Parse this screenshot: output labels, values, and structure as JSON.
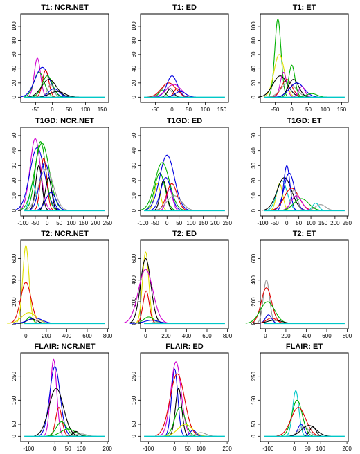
{
  "figure": {
    "palette": [
      "#000000",
      "#e00000",
      "#00b000",
      "#0000e0",
      "#00c8c8",
      "#d000d0",
      "#e0e000",
      "#999999"
    ],
    "baseline_color": "#00c8c8"
  },
  "chart_data": [
    {
      "type": "line",
      "title": "T1: NCR.NET",
      "xlim": [
        -95,
        170
      ],
      "ylim": [
        0,
        110
      ],
      "xticks": [
        -50,
        0,
        50,
        100,
        150
      ],
      "yticks": [
        0,
        20,
        40,
        60,
        80,
        100
      ],
      "peaks": [
        {
          "x": -45,
          "y": 55,
          "color": "#d000d0"
        },
        {
          "x": -40,
          "y": 35,
          "color": "#00b000"
        },
        {
          "x": -30,
          "y": 42,
          "color": "#0000e0"
        },
        {
          "x": -20,
          "y": 38,
          "color": "#e00000"
        },
        {
          "x": -15,
          "y": 30,
          "color": "#00b000"
        },
        {
          "x": -10,
          "y": 25,
          "color": "#000000"
        },
        {
          "x": -5,
          "y": 18,
          "color": "#999999"
        },
        {
          "x": 5,
          "y": 12,
          "color": "#0000e0"
        },
        {
          "x": 15,
          "y": 8,
          "color": "#000000"
        }
      ]
    },
    {
      "type": "line",
      "title": "T1: ED",
      "xlim": [
        -95,
        170
      ],
      "ylim": [
        0,
        110
      ],
      "xticks": [
        -50,
        0,
        50,
        100,
        150
      ],
      "yticks": [
        0,
        20,
        40,
        60,
        80,
        100
      ],
      "peaks": [
        {
          "x": -30,
          "y": 10,
          "color": "#00b000"
        },
        {
          "x": -20,
          "y": 15,
          "color": "#999999"
        },
        {
          "x": -10,
          "y": 20,
          "color": "#e00000"
        },
        {
          "x": -5,
          "y": 12,
          "color": "#000000"
        },
        {
          "x": 0,
          "y": 30,
          "color": "#0000e0"
        },
        {
          "x": 5,
          "y": 18,
          "color": "#d000d0"
        },
        {
          "x": 15,
          "y": 12,
          "color": "#e00000"
        },
        {
          "x": 25,
          "y": 8,
          "color": "#0000e0"
        }
      ]
    },
    {
      "type": "line",
      "title": "T1: ET",
      "xlim": [
        -95,
        170
      ],
      "ylim": [
        0,
        110
      ],
      "xticks": [
        -50,
        0,
        50,
        100,
        150
      ],
      "yticks": [
        0,
        20,
        40,
        60,
        80,
        100
      ],
      "peaks": [
        {
          "x": -42,
          "y": 110,
          "color": "#00b000"
        },
        {
          "x": -38,
          "y": 60,
          "color": "#e0e000"
        },
        {
          "x": -35,
          "y": 30,
          "color": "#000000"
        },
        {
          "x": -25,
          "y": 35,
          "color": "#d000d0"
        },
        {
          "x": -15,
          "y": 25,
          "color": "#e00000"
        },
        {
          "x": -10,
          "y": 20,
          "color": "#999999"
        },
        {
          "x": 0,
          "y": 45,
          "color": "#00b000"
        },
        {
          "x": 5,
          "y": 25,
          "color": "#000000"
        },
        {
          "x": 15,
          "y": 20,
          "color": "#0000e0"
        },
        {
          "x": 30,
          "y": 15,
          "color": "#d000d0"
        },
        {
          "x": 60,
          "y": 5,
          "color": "#00b000"
        }
      ]
    },
    {
      "type": "line",
      "title": "T1GD: NCR.NET",
      "xlim": [
        -110,
        255
      ],
      "ylim": [
        0,
        52
      ],
      "xticks": [
        -100,
        -50,
        0,
        50,
        100,
        150,
        200,
        250
      ],
      "yticks": [
        0,
        10,
        20,
        30,
        40,
        50
      ],
      "peaks": [
        {
          "x": -60,
          "y": 18,
          "color": "#00c8c8"
        },
        {
          "x": -50,
          "y": 48,
          "color": "#d000d0"
        },
        {
          "x": -42,
          "y": 42,
          "color": "#0000e0"
        },
        {
          "x": -35,
          "y": 30,
          "color": "#000000"
        },
        {
          "x": -28,
          "y": 46,
          "color": "#00b000"
        },
        {
          "x": -22,
          "y": 45,
          "color": "#00b000"
        },
        {
          "x": -15,
          "y": 35,
          "color": "#e00000"
        },
        {
          "x": -10,
          "y": 32,
          "color": "#0000e0"
        },
        {
          "x": -5,
          "y": 28,
          "color": "#999999"
        },
        {
          "x": 5,
          "y": 22,
          "color": "#000000"
        },
        {
          "x": 15,
          "y": 12,
          "color": "#0000e0"
        }
      ]
    },
    {
      "type": "line",
      "title": "T1GD: ED",
      "xlim": [
        -110,
        255
      ],
      "ylim": [
        0,
        52
      ],
      "xticks": [
        -100,
        -50,
        0,
        50,
        100,
        150,
        200,
        250
      ],
      "yticks": [
        0,
        10,
        20,
        30,
        40,
        50
      ],
      "peaks": [
        {
          "x": -40,
          "y": 18,
          "color": "#e0e000"
        },
        {
          "x": -30,
          "y": 25,
          "color": "#00b000"
        },
        {
          "x": -20,
          "y": 32,
          "color": "#00b000"
        },
        {
          "x": -15,
          "y": 20,
          "color": "#000000"
        },
        {
          "x": -5,
          "y": 22,
          "color": "#0000e0"
        },
        {
          "x": 0,
          "y": 37,
          "color": "#0000e0"
        },
        {
          "x": 10,
          "y": 14,
          "color": "#d000d0"
        },
        {
          "x": 20,
          "y": 18,
          "color": "#e00000"
        },
        {
          "x": 30,
          "y": 10,
          "color": "#999999"
        }
      ]
    },
    {
      "type": "line",
      "title": "T1GD: ET",
      "xlim": [
        -110,
        255
      ],
      "ylim": [
        0,
        52
      ],
      "xticks": [
        -100,
        -50,
        0,
        50,
        100,
        150,
        200,
        250
      ],
      "yticks": [
        0,
        10,
        20,
        30,
        40,
        50
      ],
      "peaks": [
        {
          "x": -30,
          "y": 18,
          "color": "#e0e000"
        },
        {
          "x": -20,
          "y": 20,
          "color": "#00c8c8"
        },
        {
          "x": -10,
          "y": 22,
          "color": "#000000"
        },
        {
          "x": 0,
          "y": 30,
          "color": "#0000e0"
        },
        {
          "x": 10,
          "y": 25,
          "color": "#0000e0"
        },
        {
          "x": 20,
          "y": 15,
          "color": "#e00000"
        },
        {
          "x": 30,
          "y": 14,
          "color": "#999999"
        },
        {
          "x": 40,
          "y": 10,
          "color": "#d000d0"
        },
        {
          "x": 60,
          "y": 8,
          "color": "#00b000"
        },
        {
          "x": 120,
          "y": 5,
          "color": "#00c8c8"
        },
        {
          "x": 140,
          "y": 4,
          "color": "#999999"
        }
      ]
    },
    {
      "type": "line",
      "title": "T2: NCR.NET",
      "xlim": [
        -50,
        810
      ],
      "ylim": [
        0,
        720
      ],
      "xticks": [
        0,
        200,
        400,
        600,
        800
      ],
      "yticks": [
        0,
        200,
        400,
        600
      ],
      "peaks": [
        {
          "x": 0,
          "y": 720,
          "color": "#e0e000"
        },
        {
          "x": 0,
          "y": 380,
          "color": "#e00000"
        },
        {
          "x": 30,
          "y": 100,
          "color": "#e0e000"
        },
        {
          "x": 40,
          "y": 60,
          "color": "#00b000"
        },
        {
          "x": 60,
          "y": 40,
          "color": "#000000"
        },
        {
          "x": 90,
          "y": 50,
          "color": "#0000e0"
        },
        {
          "x": 140,
          "y": 30,
          "color": "#999999"
        }
      ]
    },
    {
      "type": "line",
      "title": "T2: ED",
      "xlim": [
        -50,
        810
      ],
      "ylim": [
        0,
        720
      ],
      "xticks": [
        0,
        200,
        400,
        600,
        800
      ],
      "yticks": [
        0,
        200,
        400,
        600
      ],
      "peaks": [
        {
          "x": 0,
          "y": 660,
          "color": "#e0e000"
        },
        {
          "x": 0,
          "y": 600,
          "color": "#000000"
        },
        {
          "x": 0,
          "y": 500,
          "color": "#d000d0"
        },
        {
          "x": 5,
          "y": 300,
          "color": "#e00000"
        },
        {
          "x": 30,
          "y": 60,
          "color": "#00b000"
        },
        {
          "x": 60,
          "y": 30,
          "color": "#0000e0"
        },
        {
          "x": 100,
          "y": 15,
          "color": "#999999"
        }
      ]
    },
    {
      "type": "line",
      "title": "T2: ET",
      "xlim": [
        -50,
        810
      ],
      "ylim": [
        0,
        720
      ],
      "xticks": [
        0,
        200,
        400,
        600,
        800
      ],
      "yticks": [
        0,
        200,
        400,
        600
      ],
      "peaks": [
        {
          "x": 10,
          "y": 400,
          "color": "#999999"
        },
        {
          "x": 10,
          "y": 330,
          "color": "#e00000"
        },
        {
          "x": 20,
          "y": 200,
          "color": "#00b000"
        },
        {
          "x": 30,
          "y": 80,
          "color": "#0000e0"
        },
        {
          "x": 60,
          "y": 50,
          "color": "#e00000"
        },
        {
          "x": 90,
          "y": 30,
          "color": "#000000"
        }
      ]
    },
    {
      "type": "line",
      "title": "FLAIR: NCR.NET",
      "xlim": [
        -130,
        205
      ],
      "ylim": [
        0,
        325
      ],
      "xticks": [
        -100,
        0,
        50,
        100,
        200
      ],
      "yticks": [
        0,
        50,
        150,
        250
      ],
      "peaks": [
        {
          "x": -5,
          "y": 320,
          "color": "#d000d0"
        },
        {
          "x": 0,
          "y": 290,
          "color": "#0000e0"
        },
        {
          "x": 5,
          "y": 200,
          "color": "#000000"
        },
        {
          "x": 15,
          "y": 120,
          "color": "#e00000"
        },
        {
          "x": 25,
          "y": 60,
          "color": "#00b000"
        },
        {
          "x": 50,
          "y": 30,
          "color": "#00b000"
        },
        {
          "x": 80,
          "y": 20,
          "color": "#000000"
        },
        {
          "x": 100,
          "y": 10,
          "color": "#999999"
        }
      ]
    },
    {
      "type": "line",
      "title": "FLAIR: ED",
      "xlim": [
        -130,
        205
      ],
      "ylim": [
        0,
        325
      ],
      "xticks": [
        -100,
        0,
        50,
        100,
        200
      ],
      "yticks": [
        0,
        50,
        150,
        250
      ],
      "peaks": [
        {
          "x": 0,
          "y": 280,
          "color": "#0000e0"
        },
        {
          "x": 5,
          "y": 310,
          "color": "#d000d0"
        },
        {
          "x": 10,
          "y": 260,
          "color": "#e00000"
        },
        {
          "x": 15,
          "y": 200,
          "color": "#000000"
        },
        {
          "x": 20,
          "y": 120,
          "color": "#00b000"
        },
        {
          "x": 40,
          "y": 50,
          "color": "#e0e000"
        },
        {
          "x": 70,
          "y": 25,
          "color": "#0000e0"
        },
        {
          "x": 100,
          "y": 15,
          "color": "#999999"
        }
      ]
    },
    {
      "type": "line",
      "title": "FLAIR: ET",
      "xlim": [
        -130,
        205
      ],
      "ylim": [
        0,
        325
      ],
      "xticks": [
        -100,
        0,
        50,
        100,
        200
      ],
      "yticks": [
        0,
        50,
        150,
        250
      ],
      "peaks": [
        {
          "x": 5,
          "y": 190,
          "color": "#00c8c8"
        },
        {
          "x": 10,
          "y": 150,
          "color": "#00b000"
        },
        {
          "x": 15,
          "y": 120,
          "color": "#e00000"
        },
        {
          "x": 25,
          "y": 50,
          "color": "#0000e0"
        },
        {
          "x": 35,
          "y": 40,
          "color": "#999999"
        },
        {
          "x": 55,
          "y": 45,
          "color": "#000000"
        },
        {
          "x": 70,
          "y": 40,
          "color": "#000000"
        }
      ]
    }
  ]
}
